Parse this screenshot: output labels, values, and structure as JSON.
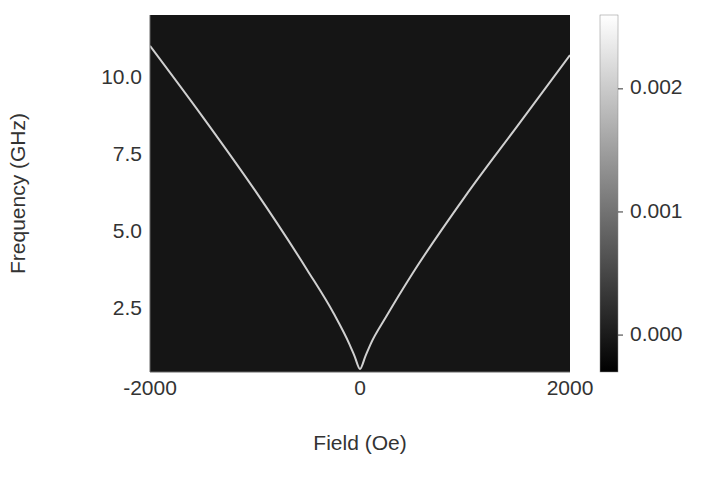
{
  "chart_data": {
    "type": "line",
    "xlabel": "Field (Oe)",
    "ylabel": "Frequency (GHz)",
    "xlim": [
      -2000,
      2000
    ],
    "ylim": [
      0.4,
      12
    ],
    "xticks": [
      -2000,
      0,
      2000
    ],
    "yticks": [
      {
        "value": 2.5,
        "label": "2.5"
      },
      {
        "value": 5,
        "label": "5.0"
      },
      {
        "value": 7.5,
        "label": "7.5"
      },
      {
        "value": 10,
        "label": "10.0"
      }
    ],
    "x": [
      -2000,
      -1500,
      -1000,
      -500,
      -250,
      -100,
      -50,
      0,
      50,
      100,
      250,
      500,
      1000,
      1500,
      2000
    ],
    "values": [
      11.0,
      8.7,
      6.3,
      3.7,
      2.3,
      1.3,
      0.9,
      0.5,
      0.9,
      1.3,
      2.2,
      3.6,
      6.1,
      8.4,
      10.7
    ],
    "color": "#d0d0d0",
    "colorbar": {
      "range": [
        -0.0003,
        0.0026
      ],
      "ticks": [
        {
          "value": 0,
          "label": "0.000"
        },
        {
          "value": 0.001,
          "label": "0.001"
        },
        {
          "value": 0.002,
          "label": "0.002"
        }
      ]
    }
  }
}
